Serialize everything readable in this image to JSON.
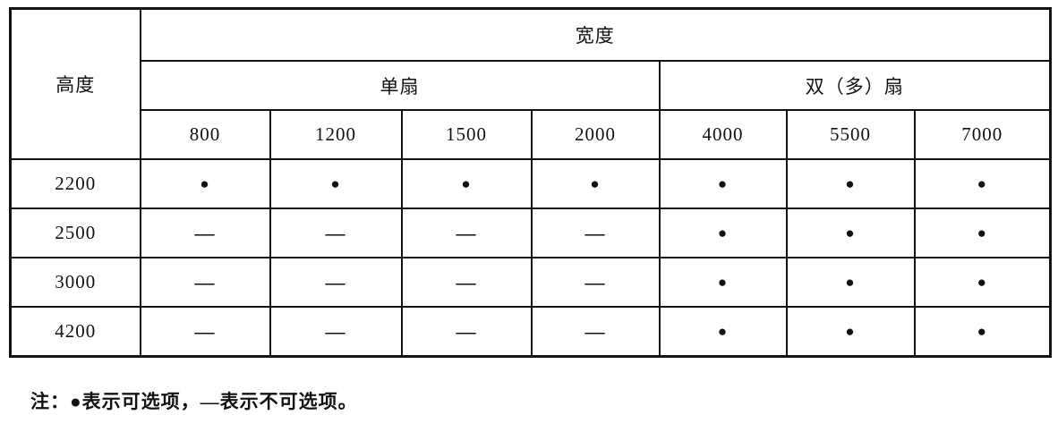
{
  "table": {
    "corner_label": "高度",
    "width_header": "宽度",
    "groups": [
      {
        "label": "单扇",
        "cols": [
          "800",
          "1200",
          "1500",
          "2000"
        ]
      },
      {
        "label": "双（多）扇",
        "cols": [
          "4000",
          "5500",
          "7000"
        ]
      }
    ],
    "rows": [
      {
        "height": "2200",
        "cells": [
          "dot",
          "dot",
          "dot",
          "dot",
          "dot",
          "dot",
          "dot"
        ]
      },
      {
        "height": "2500",
        "cells": [
          "dash",
          "dash",
          "dash",
          "dash",
          "dot",
          "dot",
          "dot"
        ]
      },
      {
        "height": "3000",
        "cells": [
          "dash",
          "dash",
          "dash",
          "dash",
          "dot",
          "dot",
          "dot"
        ]
      },
      {
        "height": "4200",
        "cells": [
          "dash",
          "dash",
          "dash",
          "dash",
          "dot",
          "dot",
          "dot"
        ]
      }
    ],
    "symbols": {
      "dot": "●",
      "dash": "—"
    }
  },
  "note": {
    "text": "注：●表示可选项，—表示不可选项。"
  },
  "colors": {
    "ink": "#121212",
    "paper": "#ffffff"
  }
}
